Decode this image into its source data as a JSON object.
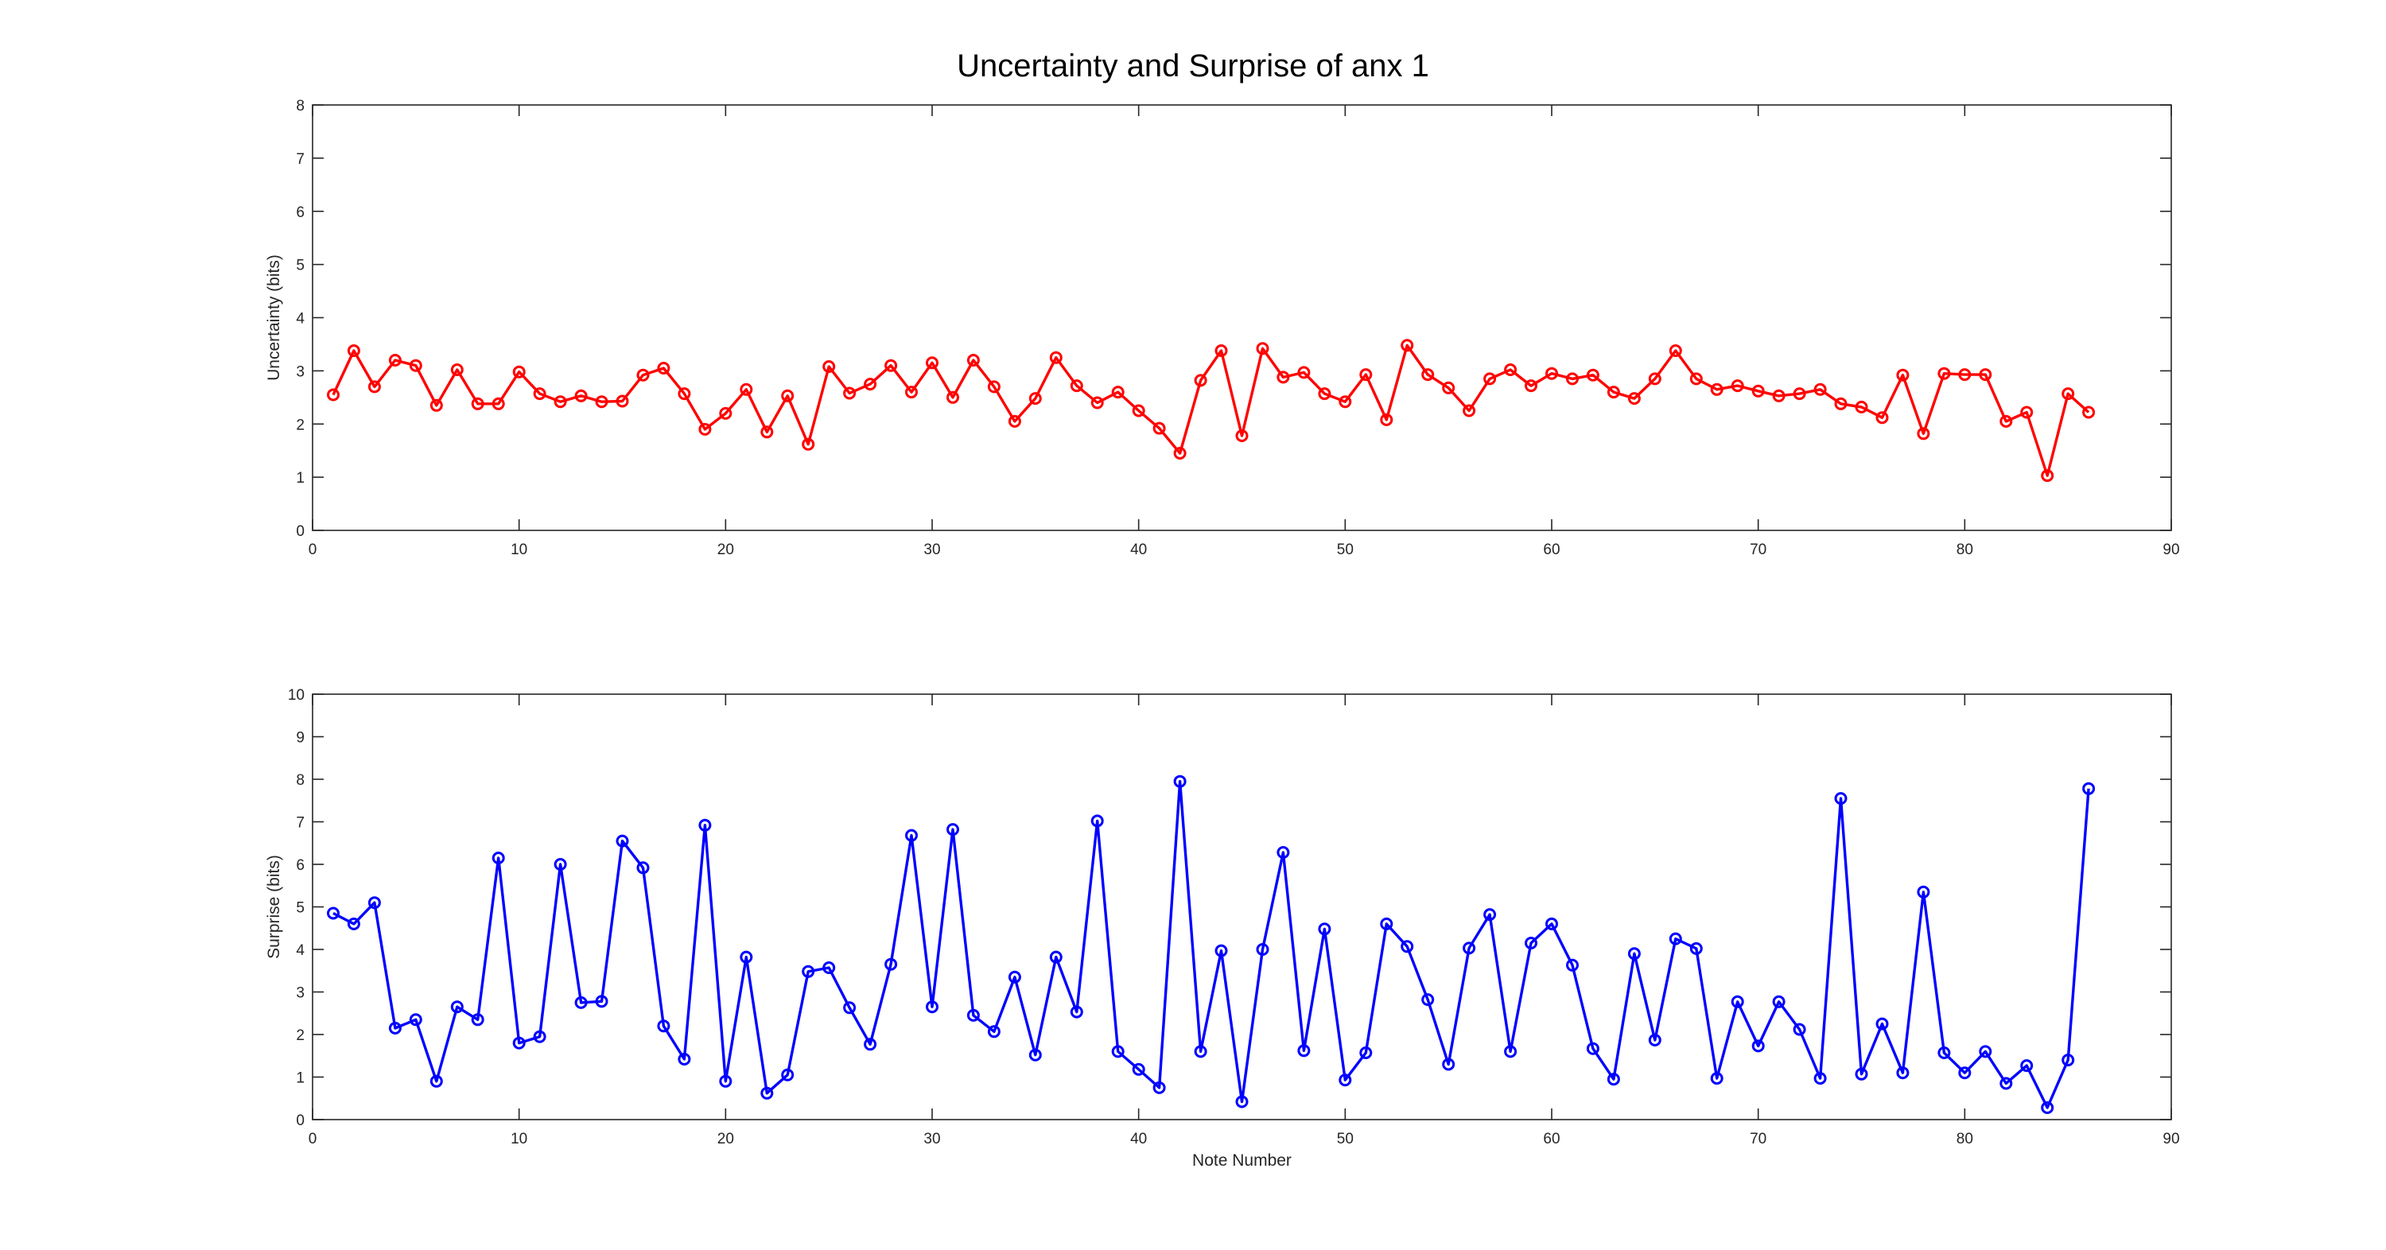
{
  "figure": {
    "title": "Uncertainty and Surprise of anx 1"
  },
  "chart_data": [
    {
      "type": "line",
      "xlabel": "",
      "ylabel": "Uncertainty (bits)",
      "xlim": [
        0,
        90
      ],
      "ylim": [
        0,
        8
      ],
      "xticks": [
        0,
        10,
        20,
        30,
        40,
        50,
        60,
        70,
        80,
        90
      ],
      "yticks": [
        0,
        1,
        2,
        3,
        4,
        5,
        6,
        7,
        8
      ],
      "grid": false,
      "marker": "circle",
      "color": "#ff0000",
      "x": [
        1,
        2,
        3,
        4,
        5,
        6,
        7,
        8,
        9,
        10,
        11,
        12,
        13,
        14,
        15,
        16,
        17,
        18,
        19,
        20,
        21,
        22,
        23,
        24,
        25,
        26,
        27,
        28,
        29,
        30,
        31,
        32,
        33,
        34,
        35,
        36,
        37,
        38,
        39,
        40,
        41,
        42,
        43,
        44,
        45,
        46,
        47,
        48,
        49,
        50,
        51,
        52,
        53,
        54,
        55,
        56,
        57,
        58,
        59,
        60,
        61,
        62,
        63,
        64,
        65,
        66,
        67,
        68,
        69,
        70,
        71,
        72,
        73,
        74,
        75,
        76,
        77,
        78,
        79,
        80,
        81,
        82,
        83,
        84,
        85,
        86
      ],
      "series": [
        {
          "values": [
            2.55,
            3.38,
            2.7,
            3.2,
            3.1,
            2.35,
            3.02,
            2.38,
            2.38,
            2.98,
            2.57,
            2.42,
            2.53,
            2.42,
            2.43,
            2.92,
            3.05,
            2.57,
            1.9,
            2.2,
            2.65,
            1.85,
            2.53,
            1.62,
            3.08,
            2.58,
            2.75,
            3.1,
            2.6,
            3.15,
            2.5,
            3.2,
            2.7,
            2.05,
            2.48,
            3.25,
            2.72,
            2.4,
            2.6,
            2.25,
            1.92,
            1.45,
            2.82,
            3.38,
            1.78,
            3.42,
            2.88,
            2.97,
            2.57,
            2.42,
            2.93,
            2.08,
            3.48,
            2.93,
            2.68,
            2.25,
            2.85,
            3.02,
            2.72,
            2.95,
            2.85,
            2.92,
            2.6,
            2.48,
            2.85,
            3.38,
            2.85,
            2.65,
            2.72,
            2.62,
            2.53,
            2.57,
            2.65,
            2.38,
            2.32,
            2.12,
            2.92,
            1.82,
            2.95,
            2.93,
            2.93,
            2.05,
            2.22,
            1.03,
            2.57,
            2.22
          ]
        }
      ]
    },
    {
      "type": "line",
      "xlabel": "Note Number",
      "ylabel": "Surprise (bits)",
      "xlim": [
        0,
        90
      ],
      "ylim": [
        0,
        10
      ],
      "xticks": [
        0,
        10,
        20,
        30,
        40,
        50,
        60,
        70,
        80,
        90
      ],
      "yticks": [
        0,
        1,
        2,
        3,
        4,
        5,
        6,
        7,
        8,
        9,
        10
      ],
      "grid": false,
      "marker": "circle",
      "color": "#0000ff",
      "x": [
        1,
        2,
        3,
        4,
        5,
        6,
        7,
        8,
        9,
        10,
        11,
        12,
        13,
        14,
        15,
        16,
        17,
        18,
        19,
        20,
        21,
        22,
        23,
        24,
        25,
        26,
        27,
        28,
        29,
        30,
        31,
        32,
        33,
        34,
        35,
        36,
        37,
        38,
        39,
        40,
        41,
        42,
        43,
        44,
        45,
        46,
        47,
        48,
        49,
        50,
        51,
        52,
        53,
        54,
        55,
        56,
        57,
        58,
        59,
        60,
        61,
        62,
        63,
        64,
        65,
        66,
        67,
        68,
        69,
        70,
        71,
        72,
        73,
        74,
        75,
        76,
        77,
        78,
        79,
        80,
        81,
        82,
        83,
        84,
        85,
        86
      ],
      "series": [
        {
          "values": [
            4.85,
            4.6,
            5.1,
            2.15,
            2.35,
            0.9,
            2.65,
            2.35,
            6.15,
            1.8,
            1.95,
            6.0,
            2.75,
            2.78,
            6.55,
            5.92,
            2.2,
            1.42,
            6.92,
            0.9,
            3.82,
            0.62,
            1.05,
            3.48,
            3.57,
            2.63,
            1.77,
            3.65,
            6.68,
            2.65,
            6.82,
            2.45,
            2.07,
            3.35,
            1.52,
            3.82,
            2.53,
            7.02,
            1.6,
            1.18,
            0.75,
            7.95,
            1.6,
            3.97,
            0.42,
            4.0,
            6.28,
            1.62,
            4.48,
            0.93,
            1.57,
            4.6,
            4.07,
            2.82,
            1.3,
            4.03,
            4.82,
            1.6,
            4.15,
            4.6,
            3.63,
            1.67,
            0.95,
            3.9,
            1.87,
            4.25,
            4.02,
            0.97,
            2.77,
            1.73,
            2.77,
            2.12,
            0.97,
            7.55,
            1.07,
            2.25,
            1.1,
            5.35,
            1.57,
            1.1,
            1.6,
            0.85,
            1.27,
            0.28,
            1.4,
            7.78
          ]
        }
      ]
    }
  ]
}
